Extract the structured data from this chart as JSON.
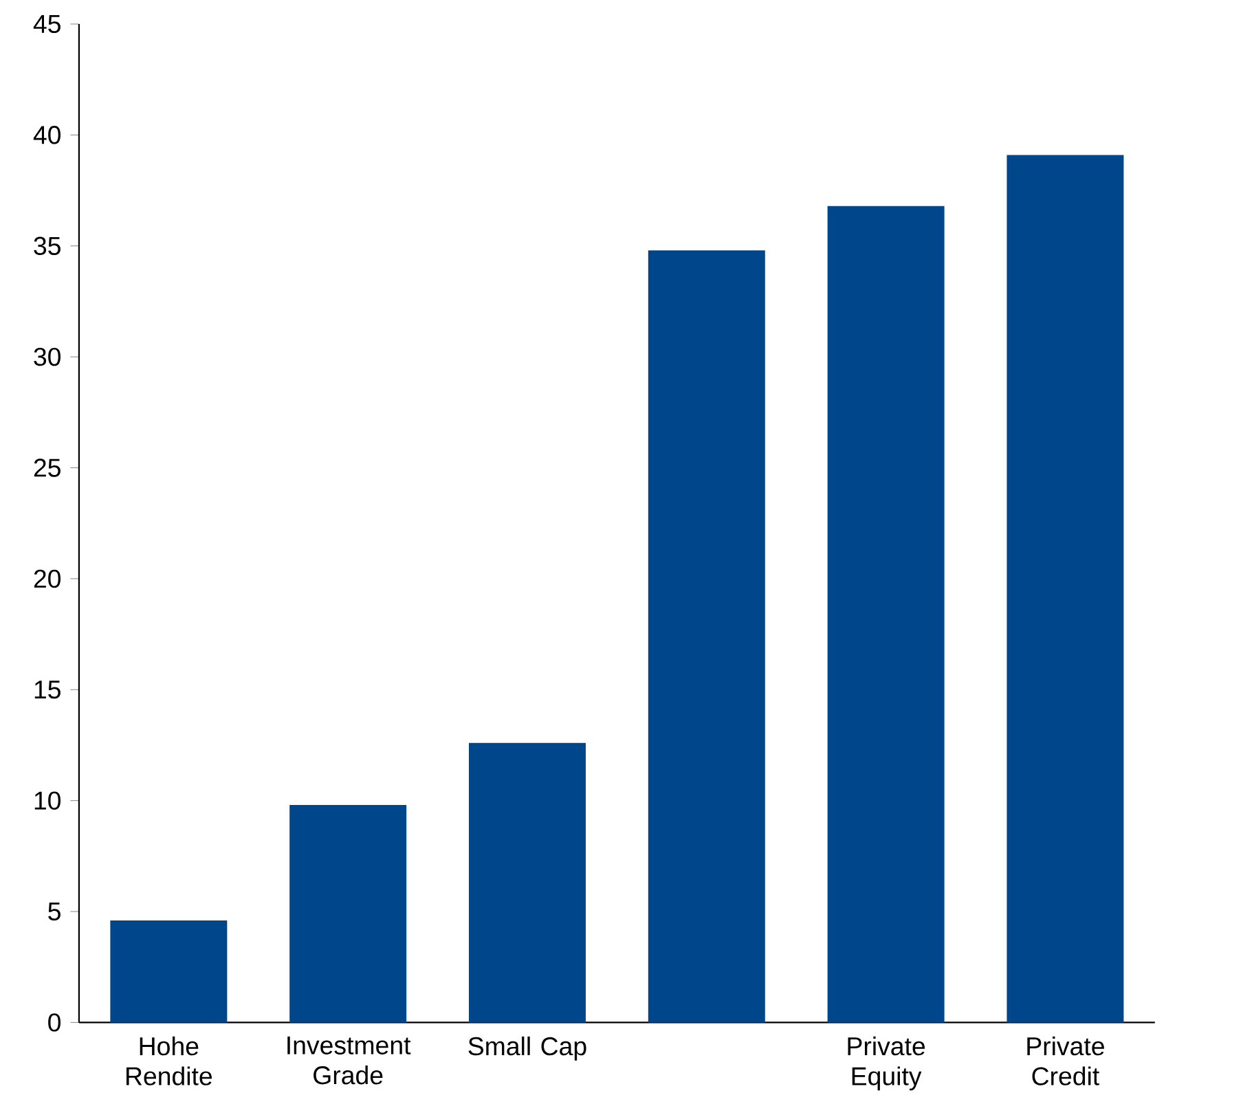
{
  "chart_data": {
    "type": "bar",
    "categories": [
      "Hohe Rendite",
      "Investment Grade",
      "Small Cap",
      null,
      "Private Equity",
      "Private Credit"
    ],
    "values": [
      4.6,
      9.8,
      12.6,
      34.8,
      36.8,
      39.1
    ],
    "color": "#00468b",
    "ylim": [
      0,
      45
    ],
    "yticks": [
      0,
      5,
      10,
      15,
      20,
      25,
      30,
      35,
      40,
      45
    ],
    "grid": false
  }
}
